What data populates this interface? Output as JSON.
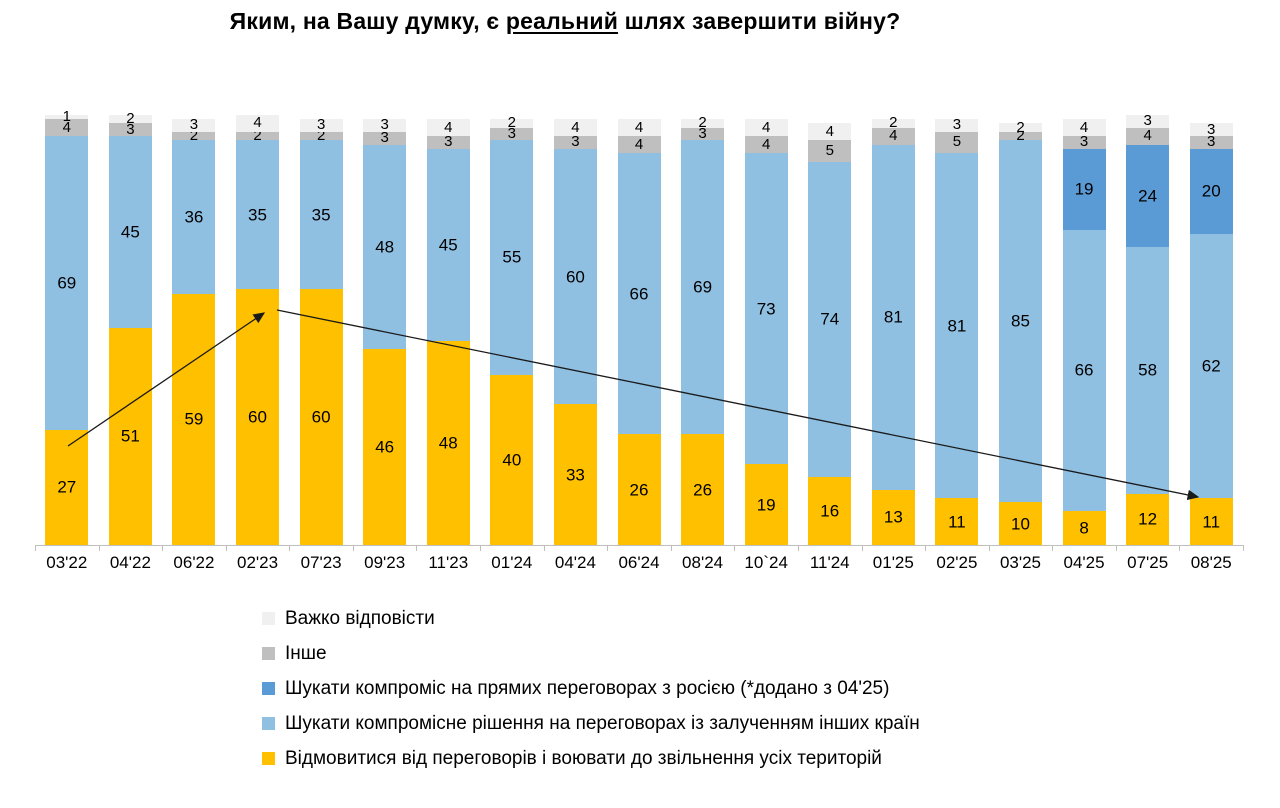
{
  "title": {
    "prefix": "Яким, на Вашу думку, є ",
    "emphasis": "реальний",
    "suffix": " шлях завершити війну?"
  },
  "colors": {
    "yellow": "#FFC000",
    "light_blue": "#8FBFE1",
    "dark_blue": "#5B9BD5",
    "gray": "#BFBFBF",
    "light_gray": "#F0F0F0",
    "axis": "#BFBFBF",
    "text": "#000000"
  },
  "chart_data": {
    "type": "bar",
    "stacked": true,
    "ylim": [
      0,
      100
    ],
    "grid": false,
    "legend_position": "bottom-left",
    "categories": [
      "03'22",
      "04'22",
      "06'22",
      "02'23",
      "07'23",
      "09'23",
      "11'23",
      "01'24",
      "04'24",
      "06'24",
      "08'24",
      "10`24",
      "11'24",
      "01'25",
      "02'25",
      "03'25",
      "04'25",
      "07'25",
      "08'25"
    ],
    "series": [
      {
        "name": "Відмовитися від переговорів і воювати до звільнення усіх територій",
        "color_key": "yellow",
        "label_size": "large",
        "values": [
          27,
          51,
          59,
          60,
          60,
          46,
          48,
          40,
          33,
          26,
          26,
          19,
          16,
          13,
          11,
          10,
          8,
          12,
          11
        ]
      },
      {
        "name": "Шукати компромісне рішення на переговорах із залученням інших країн",
        "color_key": "light_blue",
        "label_size": "large",
        "values": [
          69,
          45,
          36,
          35,
          35,
          48,
          45,
          55,
          60,
          66,
          69,
          73,
          74,
          81,
          81,
          85,
          66,
          58,
          62
        ]
      },
      {
        "name": "Шукати компроміс на прямих переговорах з росією (*додано з 04'25)",
        "color_key": "dark_blue",
        "label_size": "large",
        "values": [
          null,
          null,
          null,
          null,
          null,
          null,
          null,
          null,
          null,
          null,
          null,
          null,
          null,
          null,
          null,
          null,
          19,
          24,
          20
        ]
      },
      {
        "name": "Інше",
        "color_key": "gray",
        "label_size": "small",
        "values": [
          4,
          3,
          2,
          2,
          2,
          3,
          3,
          3,
          3,
          4,
          3,
          4,
          5,
          4,
          5,
          2,
          3,
          4,
          3
        ]
      },
      {
        "name": "Важко відповісти",
        "color_key": "light_gray",
        "label_size": "small",
        "values": [
          1,
          2,
          3,
          4,
          3,
          3,
          4,
          2,
          4,
          4,
          2,
          4,
          4,
          2,
          3,
          2,
          4,
          3,
          3
        ]
      }
    ],
    "legend": [
      {
        "label": "Важко відповісти",
        "color_key": "light_gray"
      },
      {
        "label": "Інше",
        "color_key": "gray"
      },
      {
        "label": "Шукати компроміс на прямих переговорах з росією (*додано з 04'25)",
        "color_key": "dark_blue"
      },
      {
        "label": "Шукати компромісне рішення на переговорах із залученням інших країн",
        "color_key": "light_blue"
      },
      {
        "label": "Відмовитися від переговорів і воювати до звільнення усіх територій",
        "color_key": "yellow"
      }
    ]
  }
}
